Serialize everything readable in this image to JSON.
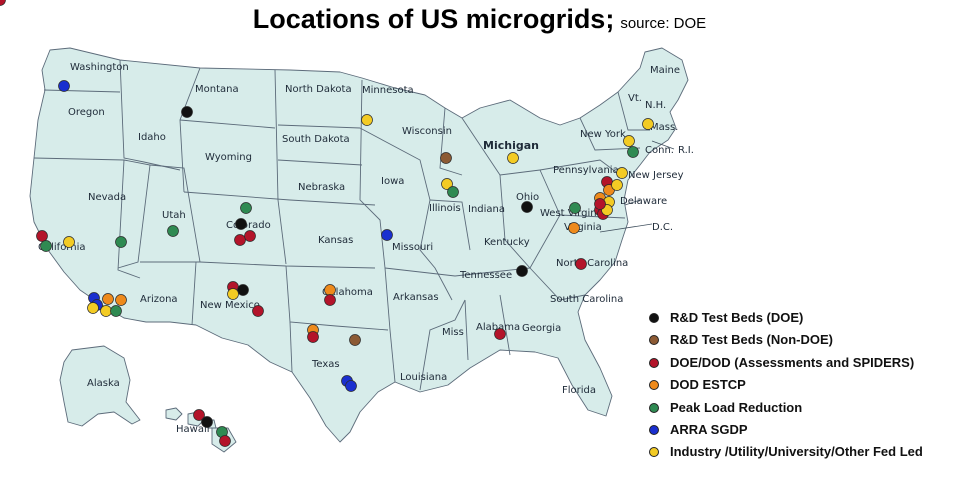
{
  "title": "Locations of US microgrids;",
  "subtitle": "source: DOE",
  "categories": [
    {
      "key": "rd_doe",
      "label": "R&D Test Beds (DOE)",
      "color": "#111111"
    },
    {
      "key": "rd_nondoe",
      "label": "R&D Test Beds (Non-DOE)",
      "color": "#8c5a34"
    },
    {
      "key": "dod",
      "label": "DOE/DOD  (Assessments and SPIDERS)",
      "color": "#b3142a"
    },
    {
      "key": "estcp",
      "label": "DOD ESTCP",
      "color": "#ee8a1c"
    },
    {
      "key": "peak",
      "label": "Peak Load Reduction",
      "color": "#2f8a52"
    },
    {
      "key": "arra",
      "label": "ARRA SGDP",
      "color": "#1a2fcf"
    },
    {
      "key": "industry",
      "label": "Industry /Utility/University/Other Fed Led",
      "color": "#f3cb24"
    }
  ],
  "states": [
    {
      "name": "Washington",
      "bold": false
    },
    {
      "name": "Oregon",
      "bold": false
    },
    {
      "name": "Idaho",
      "bold": false
    },
    {
      "name": "Montana",
      "bold": false
    },
    {
      "name": "Wyoming",
      "bold": false
    },
    {
      "name": "Nevada",
      "bold": false
    },
    {
      "name": "California",
      "bold": false
    },
    {
      "name": "Utah",
      "bold": false
    },
    {
      "name": "Colorado",
      "bold": false
    },
    {
      "name": "Arizona",
      "bold": false
    },
    {
      "name": "New Mexico",
      "bold": false
    },
    {
      "name": "North Dakota",
      "bold": false
    },
    {
      "name": "South Dakota",
      "bold": false
    },
    {
      "name": "Nebraska",
      "bold": false
    },
    {
      "name": "Kansas",
      "bold": false
    },
    {
      "name": "Oklahoma",
      "bold": false
    },
    {
      "name": "Texas",
      "bold": false
    },
    {
      "name": "Minnesota",
      "bold": false
    },
    {
      "name": "Iowa",
      "bold": false
    },
    {
      "name": "Missouri",
      "bold": false
    },
    {
      "name": "Arkansas",
      "bold": false
    },
    {
      "name": "Louisiana",
      "bold": false
    },
    {
      "name": "Wisconsin",
      "bold": false
    },
    {
      "name": "Illinois",
      "bold": false
    },
    {
      "name": "Michigan",
      "bold": true
    },
    {
      "name": "Indiana",
      "bold": false
    },
    {
      "name": "Ohio",
      "bold": false
    },
    {
      "name": "Kentucky",
      "bold": false
    },
    {
      "name": "Tennessee",
      "bold": false
    },
    {
      "name": "Miss",
      "bold": false
    },
    {
      "name": "Alabama",
      "bold": false
    },
    {
      "name": "Georgia",
      "bold": false
    },
    {
      "name": "Florida",
      "bold": false
    },
    {
      "name": "South Carolina",
      "bold": false
    },
    {
      "name": "North Carolina",
      "bold": false
    },
    {
      "name": "Virginia",
      "bold": false
    },
    {
      "name": "West Virginia",
      "bold": false
    },
    {
      "name": "Pennsylvania",
      "bold": false
    },
    {
      "name": "New York",
      "bold": false
    },
    {
      "name": "New Jersey",
      "bold": false
    },
    {
      "name": "Delaware",
      "bold": false
    },
    {
      "name": "D.C.",
      "bold": false
    },
    {
      "name": "Vt.",
      "bold": false
    },
    {
      "name": "N.H.",
      "bold": false
    },
    {
      "name": "Maine",
      "bold": false
    },
    {
      "name": "Mass.",
      "bold": false
    },
    {
      "name": "Conn.",
      "bold": false
    },
    {
      "name": "R.I.",
      "bold": false
    },
    {
      "name": "Alaska",
      "bold": false
    },
    {
      "name": "Hawaii",
      "bold": false
    }
  ],
  "points": [
    {
      "state": "Washington",
      "cat": "arra"
    },
    {
      "state": "Montana",
      "cat": "rd_doe"
    },
    {
      "state": "Minnesota",
      "cat": "industry"
    },
    {
      "state": "Wisconsin",
      "cat": "rd_nondoe"
    },
    {
      "state": "Michigan",
      "cat": "industry"
    },
    {
      "state": "Illinois",
      "cat": "industry"
    },
    {
      "state": "Illinois",
      "cat": "peak"
    },
    {
      "state": "Ohio",
      "cat": "rd_doe"
    },
    {
      "state": "Colorado",
      "cat": "peak"
    },
    {
      "state": "Colorado",
      "cat": "rd_doe"
    },
    {
      "state": "Colorado",
      "cat": "dod"
    },
    {
      "state": "Colorado",
      "cat": "dod"
    },
    {
      "state": "Utah",
      "cat": "peak"
    },
    {
      "state": "Nevada",
      "cat": "peak"
    },
    {
      "state": "California",
      "cat": "dod"
    },
    {
      "state": "California",
      "cat": "peak"
    },
    {
      "state": "California",
      "cat": "industry"
    },
    {
      "state": "California",
      "cat": "arra"
    },
    {
      "state": "California",
      "cat": "arra"
    },
    {
      "state": "California",
      "cat": "estcp"
    },
    {
      "state": "California",
      "cat": "estcp"
    },
    {
      "state": "California",
      "cat": "industry"
    },
    {
      "state": "California",
      "cat": "peak"
    },
    {
      "state": "California",
      "cat": "industry"
    },
    {
      "state": "New Mexico",
      "cat": "dod"
    },
    {
      "state": "New Mexico",
      "cat": "rd_doe"
    },
    {
      "state": "New Mexico",
      "cat": "industry"
    },
    {
      "state": "New Mexico",
      "cat": "dod"
    },
    {
      "state": "Kansas",
      "cat": "arra"
    },
    {
      "state": "Oklahoma",
      "cat": "estcp"
    },
    {
      "state": "Oklahoma",
      "cat": "dod"
    },
    {
      "state": "Texas",
      "cat": "estcp"
    },
    {
      "state": "Texas",
      "cat": "dod"
    },
    {
      "state": "Texas",
      "cat": "rd_nondoe"
    },
    {
      "state": "Texas",
      "cat": "arra"
    },
    {
      "state": "Texas",
      "cat": "arra"
    },
    {
      "state": "Tennessee",
      "cat": "rd_doe"
    },
    {
      "state": "North Carolina",
      "cat": "dod"
    },
    {
      "state": "Alabama",
      "cat": "dod"
    },
    {
      "state": "West Virginia",
      "cat": "peak"
    },
    {
      "state": "Virginia",
      "cat": "estcp"
    },
    {
      "state": "Pennsylvania",
      "cat": "estcp"
    },
    {
      "state": "Pennsylvania",
      "cat": "dod"
    },
    {
      "state": "Pennsylvania",
      "cat": "estcp"
    },
    {
      "state": "Pennsylvania",
      "cat": "dod"
    },
    {
      "state": "Pennsylvania",
      "cat": "industry"
    },
    {
      "state": "New Jersey",
      "cat": "industry"
    },
    {
      "state": "New Jersey",
      "cat": "dod"
    },
    {
      "state": "Delaware",
      "cat": "industry"
    },
    {
      "state": "Delaware",
      "cat": "industry"
    },
    {
      "state": "Virginia",
      "cat": "dod"
    },
    {
      "state": "Virginia",
      "cat": "industry"
    },
    {
      "state": "New York",
      "cat": "peak"
    },
    {
      "state": "Conn.",
      "cat": "industry"
    },
    {
      "state": "Mass.",
      "cat": "dod"
    },
    {
      "state": "Hawaii",
      "cat": "rd_doe"
    },
    {
      "state": "Hawaii",
      "cat": "peak"
    },
    {
      "state": "Hawaii",
      "cat": "dod"
    },
    {
      "state": "Hawaii",
      "cat": "dod"
    }
  ]
}
